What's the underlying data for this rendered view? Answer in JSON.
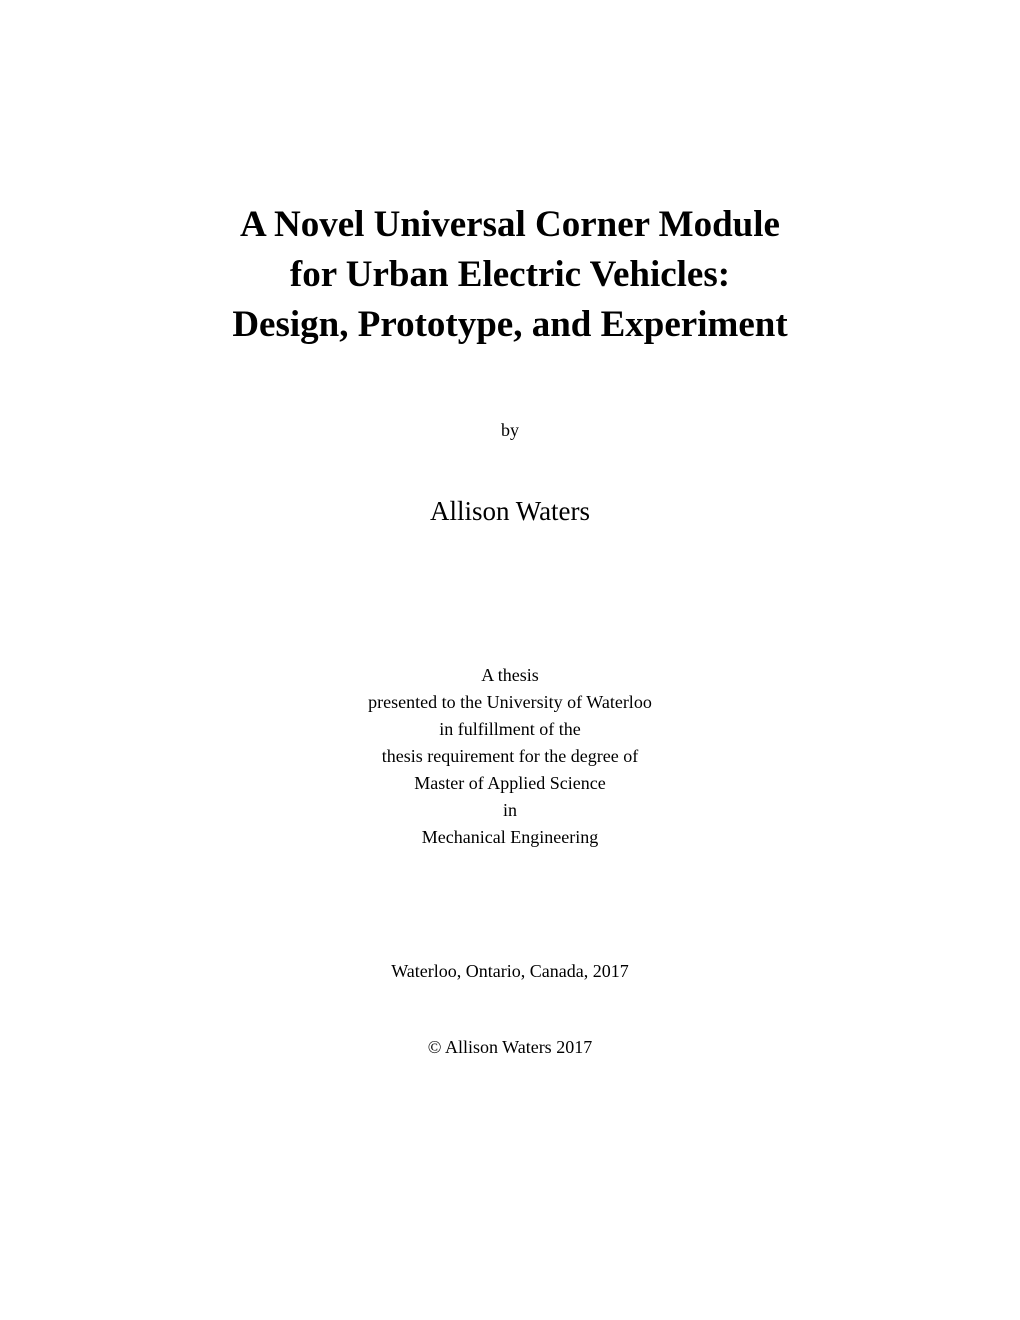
{
  "title": {
    "line1": "A Novel Universal Corner Module",
    "line2": "for Urban Electric Vehicles:",
    "line3": "Design, Prototype, and Experiment"
  },
  "by": "by",
  "author": "Allison Waters",
  "thesis": {
    "line1": "A thesis",
    "line2": "presented to the University of Waterloo",
    "line3": "in fulfillment of the",
    "line4": "thesis requirement for the degree of",
    "line5": "Master of Applied Science",
    "line6": "in",
    "line7": "Mechanical Engineering"
  },
  "location": "Waterloo, Ontario, Canada, 2017",
  "copyright": "© Allison Waters 2017",
  "colors": {
    "background": "#ffffff",
    "text": "#000000"
  },
  "typography": {
    "title_fontsize": 37,
    "title_fontweight": "bold",
    "author_fontsize": 27,
    "body_fontsize": 18,
    "font_family": "Times New Roman"
  }
}
